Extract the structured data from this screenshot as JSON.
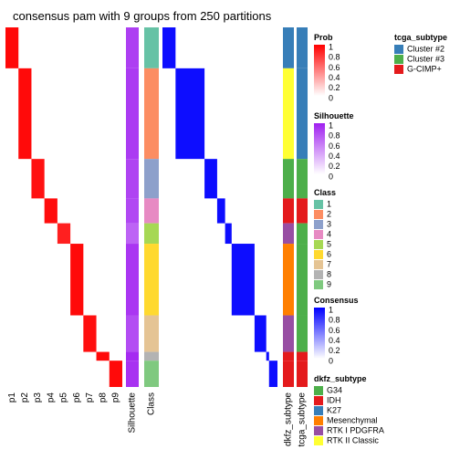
{
  "chart_data": {
    "type": "heatmap",
    "title": "consensus pam with 9 groups from 250 partitions",
    "prob_columns": [
      "p1",
      "p2",
      "p3",
      "p4",
      "p5",
      "p6",
      "p7",
      "p8",
      "p9"
    ],
    "silhouette_label": "Silhouette",
    "class_label": "Class",
    "annotation_columns": [
      "dkfz_subtype",
      "tcga_subtype"
    ],
    "groups": [
      {
        "id": 1,
        "rows": 28,
        "prob": 0.97,
        "sil": 0.86
      },
      {
        "id": 2,
        "rows": 62,
        "prob": 0.96,
        "sil": 0.88
      },
      {
        "id": 3,
        "rows": 27,
        "prob": 0.93,
        "sil": 0.84
      },
      {
        "id": 4,
        "rows": 17,
        "prob": 0.95,
        "sil": 0.82
      },
      {
        "id": 5,
        "rows": 14,
        "prob": 0.88,
        "sil": 0.7
      },
      {
        "id": 6,
        "rows": 49,
        "prob": 0.96,
        "sil": 0.9
      },
      {
        "id": 7,
        "rows": 25,
        "prob": 0.94,
        "sil": 0.8
      },
      {
        "id": 8,
        "rows": 6,
        "prob": 0.97,
        "sil": 0.95
      },
      {
        "id": 9,
        "rows": 18,
        "prob": 0.96,
        "sil": 0.92
      }
    ],
    "legends": {
      "prob": {
        "title": "Prob",
        "ticks": [
          "1",
          "0.8",
          "0.6",
          "0.4",
          "0.2",
          "0"
        ]
      },
      "silhouette": {
        "title": "Silhouette",
        "ticks": [
          "1",
          "0.8",
          "0.6",
          "0.4",
          "0.2",
          "0"
        ]
      },
      "class": {
        "title": "Class",
        "entries": [
          {
            "label": "1",
            "color": "#66C2A5"
          },
          {
            "label": "2",
            "color": "#FC8D62"
          },
          {
            "label": "3",
            "color": "#8DA0CB"
          },
          {
            "label": "4",
            "color": "#E78AC3"
          },
          {
            "label": "5",
            "color": "#A6D854"
          },
          {
            "label": "6",
            "color": "#FFD92F"
          },
          {
            "label": "7",
            "color": "#E5C494"
          },
          {
            "label": "8",
            "color": "#B3B3B3"
          },
          {
            "label": "9",
            "color": "#7FC97F"
          }
        ]
      },
      "consensus": {
        "title": "Consensus",
        "ticks": [
          "1",
          "0.8",
          "0.6",
          "0.4",
          "0.2",
          "0"
        ]
      },
      "tcga_subtype": {
        "title": "tcga_subtype",
        "entries": [
          {
            "label": "Cluster #2",
            "color": "#377EB8"
          },
          {
            "label": "Cluster #3",
            "color": "#4DAF4A"
          },
          {
            "label": "G-CIMP+",
            "color": "#E41A1C"
          }
        ]
      },
      "dkfz_subtype": {
        "title": "dkfz_subtype",
        "entries": [
          {
            "label": "G34",
            "color": "#4DAF4A"
          },
          {
            "label": "IDH",
            "color": "#E41A1C"
          },
          {
            "label": "K27",
            "color": "#377EB8"
          },
          {
            "label": "Mesenchymal",
            "color": "#FF7F00"
          },
          {
            "label": "RTK I PDGFRA",
            "color": "#984EA3"
          },
          {
            "label": "RTK II Classic",
            "color": "#FFFF33"
          }
        ]
      }
    },
    "colors": {
      "prob_high": "#FF0000",
      "silhouette_high": "#A020F0",
      "consensus_high": "#0000FF"
    }
  }
}
